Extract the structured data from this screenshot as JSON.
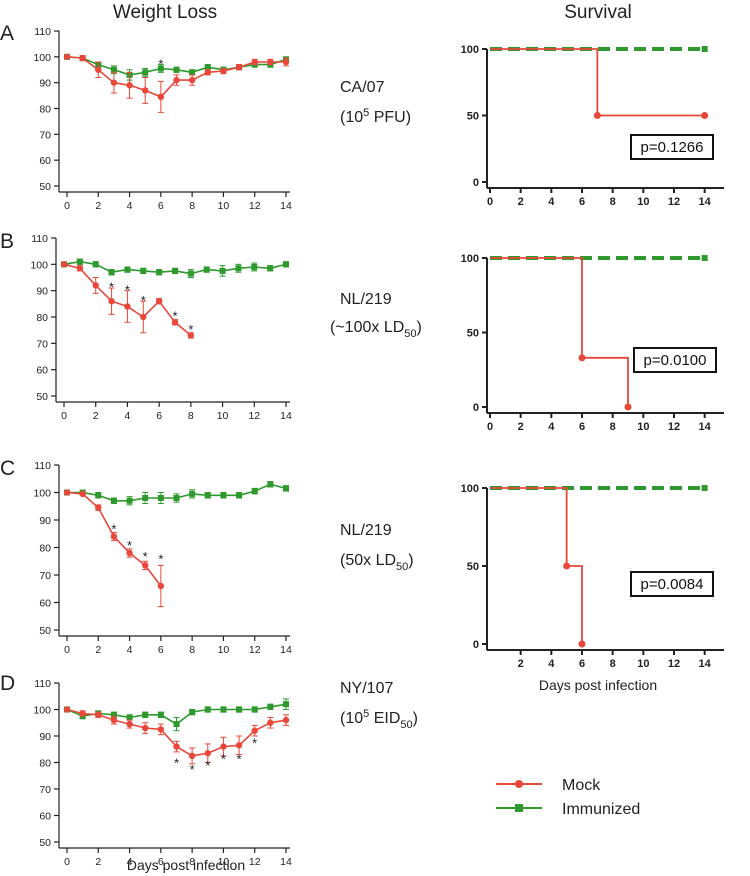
{
  "titles": {
    "left": "Weight Loss",
    "right": "Survival"
  },
  "colors": {
    "mock": "#e8473a",
    "immunized": "#2e9a2e"
  },
  "legend": {
    "mock": "Mock",
    "immunized": "Immunized"
  },
  "xlabel": "Days post infection",
  "rows": [
    {
      "panel": "A",
      "strain": "CA/07",
      "dose_prefix": "(10",
      "dose_sup": "5",
      "dose_sub": "",
      "dose_suffix": " PFU)"
    },
    {
      "panel": "B",
      "strain": "NL/219",
      "dose_prefix": "(~100x LD",
      "dose_sup": "",
      "dose_sub": "50",
      "dose_suffix": ")"
    },
    {
      "panel": "C",
      "strain": "NL/219",
      "dose_prefix": "(50x LD",
      "dose_sup": "",
      "dose_sub": "50",
      "dose_suffix": ")"
    },
    {
      "panel": "D",
      "strain": "NY/107",
      "dose_prefix": "(10",
      "dose_sup": "5",
      "dose_sub": "",
      "dose_suffix": " EID",
      "dose_suffix_sub": "50",
      "dose_end": ")"
    }
  ],
  "chart_data": [
    {
      "id": "weightA",
      "type": "line",
      "xlim": [
        0,
        14
      ],
      "ylim": [
        50,
        110
      ],
      "xticks": [
        0,
        2,
        4,
        6,
        8,
        10,
        12,
        14
      ],
      "yticks": [
        50,
        60,
        70,
        80,
        90,
        100,
        110
      ],
      "series": [
        {
          "name": "Immunized",
          "color": "#2e9a2e",
          "marker": "square",
          "x": [
            0,
            1,
            2,
            3,
            4,
            5,
            6,
            7,
            8,
            9,
            10,
            11,
            12,
            13,
            14
          ],
          "y": [
            100,
            99.5,
            97,
            95,
            93,
            94,
            95.5,
            95,
            94,
            96,
            95,
            96,
            97,
            97,
            99
          ],
          "err": [
            0.5,
            0.5,
            1,
            1.5,
            2,
            1.5,
            1.5,
            1,
            1,
            1,
            1,
            1,
            1,
            1,
            1
          ]
        },
        {
          "name": "Mock",
          "color": "#e8473a",
          "marker": "circle",
          "x": [
            0,
            1,
            2,
            3,
            4,
            5,
            6,
            7,
            8,
            9,
            10,
            11,
            12,
            13,
            14
          ],
          "y": [
            100,
            99.5,
            95,
            90,
            89,
            87,
            84.5,
            91,
            91,
            94,
            94.5,
            96,
            98,
            98,
            98
          ],
          "err": [
            0.5,
            1,
            3,
            4,
            5,
            5,
            6,
            2,
            2,
            1,
            1,
            1,
            1,
            1,
            1.5
          ]
        }
      ],
      "stars": [
        {
          "x": 6,
          "y": 97.5
        }
      ]
    },
    {
      "id": "weightB",
      "type": "line",
      "xlim": [
        0,
        14
      ],
      "ylim": [
        50,
        110
      ],
      "xticks": [
        0,
        2,
        4,
        6,
        8,
        10,
        12,
        14
      ],
      "yticks": [
        50,
        60,
        70,
        80,
        90,
        100,
        110
      ],
      "series": [
        {
          "name": "Immunized",
          "color": "#2e9a2e",
          "marker": "square",
          "x": [
            0,
            1,
            2,
            3,
            4,
            5,
            6,
            7,
            8,
            9,
            10,
            11,
            12,
            13,
            14
          ],
          "y": [
            100,
            101,
            100,
            97,
            98,
            97.5,
            97,
            97.5,
            96.5,
            98,
            97.5,
            98.5,
            99,
            98.5,
            100
          ],
          "err": [
            0.5,
            1,
            1,
            1,
            1,
            1,
            1,
            1,
            1.5,
            1,
            2,
            1.5,
            1.5,
            1,
            1
          ]
        },
        {
          "name": "Mock",
          "color": "#e8473a",
          "marker": "circle",
          "x": [
            0,
            1,
            2,
            3,
            4,
            5,
            6,
            7,
            8
          ],
          "y": [
            100,
            98.5,
            92,
            86,
            84,
            80,
            86,
            78,
            73
          ],
          "err": [
            0.5,
            1,
            3,
            5,
            6,
            6,
            1,
            1,
            1
          ]
        }
      ],
      "stars": [
        {
          "x": 3,
          "y": 91.5
        },
        {
          "x": 4,
          "y": 90.5
        },
        {
          "x": 5,
          "y": 86.5
        },
        {
          "x": 7,
          "y": 80.5
        },
        {
          "x": 8,
          "y": 75.5
        }
      ]
    },
    {
      "id": "weightC",
      "type": "line",
      "xlim": [
        0,
        14
      ],
      "ylim": [
        50,
        110
      ],
      "xticks": [
        0,
        2,
        4,
        6,
        8,
        10,
        12,
        14
      ],
      "yticks": [
        50,
        60,
        70,
        80,
        90,
        100,
        110
      ],
      "series": [
        {
          "name": "Immunized",
          "color": "#2e9a2e",
          "marker": "square",
          "x": [
            0,
            1,
            2,
            3,
            4,
            5,
            6,
            7,
            8,
            9,
            10,
            11,
            12,
            13,
            14
          ],
          "y": [
            100,
            100,
            99,
            97,
            97,
            98,
            98,
            98,
            99.5,
            99,
            99,
            99,
            100.5,
            103,
            101.5
          ],
          "err": [
            0.5,
            0.5,
            1,
            1,
            1.5,
            2,
            2,
            1.5,
            1.5,
            1,
            1,
            1,
            1,
            1,
            1
          ]
        },
        {
          "name": "Mock",
          "color": "#e8473a",
          "marker": "circle",
          "x": [
            0,
            1,
            2,
            3,
            4,
            5,
            6
          ],
          "y": [
            100,
            99.5,
            94.5,
            84,
            78,
            73.5,
            66
          ],
          "err": [
            0.5,
            0.5,
            1,
            1.5,
            1.5,
            1.5,
            7.5
          ]
        }
      ],
      "stars": [
        {
          "x": 3,
          "y": 87
        },
        {
          "x": 4,
          "y": 81
        },
        {
          "x": 5,
          "y": 77
        },
        {
          "x": 6,
          "y": 76
        }
      ]
    },
    {
      "id": "weightD",
      "type": "line",
      "xlim": [
        0,
        14
      ],
      "ylim": [
        50,
        110
      ],
      "xticks": [
        0,
        2,
        4,
        6,
        8,
        10,
        12,
        14
      ],
      "yticks": [
        50,
        60,
        70,
        80,
        90,
        100,
        110
      ],
      "series": [
        {
          "name": "Immunized",
          "color": "#2e9a2e",
          "marker": "square",
          "x": [
            0,
            1,
            2,
            3,
            4,
            5,
            6,
            7,
            8,
            9,
            10,
            11,
            12,
            13,
            14
          ],
          "y": [
            100,
            97.5,
            98.5,
            98,
            97,
            98,
            98,
            94.5,
            99,
            100,
            100,
            100,
            100,
            101,
            102
          ],
          "err": [
            0.5,
            1,
            1,
            1,
            1,
            1,
            1,
            2.5,
            1,
            1,
            1,
            1,
            1,
            1,
            2
          ]
        },
        {
          "name": "Mock",
          "color": "#e8473a",
          "marker": "circle",
          "x": [
            0,
            1,
            2,
            3,
            4,
            5,
            6,
            7,
            8,
            9,
            10,
            11,
            12,
            13,
            14
          ],
          "y": [
            100,
            98.5,
            98,
            96,
            94.5,
            93,
            92.5,
            86,
            82.5,
            83.5,
            86,
            86.5,
            92,
            95,
            96
          ],
          "err": [
            0.5,
            1,
            1,
            1.5,
            1.5,
            2,
            2,
            2,
            3,
            3.5,
            3.5,
            3.5,
            2,
            2,
            2
          ]
        }
      ],
      "stars": [
        {
          "x": 7,
          "y": 80
        },
        {
          "x": 8,
          "y": 77.5
        },
        {
          "x": 9,
          "y": 79
        },
        {
          "x": 10,
          "y": 81.5
        },
        {
          "x": 11,
          "y": 81.5
        },
        {
          "x": 12,
          "y": 87.5
        }
      ]
    },
    {
      "id": "survA",
      "type": "line",
      "step": true,
      "xlim": [
        0,
        15
      ],
      "ylim": [
        0,
        100
      ],
      "xticks": [
        0,
        2,
        4,
        6,
        8,
        10,
        12,
        14
      ],
      "yticks": [
        0,
        50,
        100
      ],
      "pvalue": "p=0.1266",
      "immunized": {
        "x": [
          0,
          14
        ],
        "y": [
          100,
          100
        ]
      },
      "mock": {
        "x": [
          0,
          7,
          14
        ],
        "y": [
          100,
          50,
          50
        ],
        "markers": [
          {
            "x": 7,
            "y": 50
          },
          {
            "x": 14,
            "y": 50
          }
        ]
      }
    },
    {
      "id": "survB",
      "type": "line",
      "step": true,
      "xlim": [
        0,
        15
      ],
      "ylim": [
        0,
        100
      ],
      "xticks": [
        0,
        2,
        4,
        6,
        8,
        10,
        12,
        14
      ],
      "yticks": [
        0,
        50,
        100
      ],
      "pvalue": "p=0.0100",
      "immunized": {
        "x": [
          0,
          14
        ],
        "y": [
          100,
          100
        ]
      },
      "mock": {
        "x": [
          0,
          6,
          9
        ],
        "y": [
          100,
          33,
          0
        ],
        "markers": [
          {
            "x": 6,
            "y": 33
          },
          {
            "x": 9,
            "y": 0
          }
        ]
      }
    },
    {
      "id": "survC",
      "type": "line",
      "step": true,
      "xlim": [
        0,
        15
      ],
      "ylim": [
        0,
        100
      ],
      "xticks": [
        2,
        4,
        6,
        8,
        10,
        12,
        14
      ],
      "yticks": [
        0,
        50,
        100
      ],
      "pvalue": "p=0.0084",
      "immunized": {
        "x": [
          0,
          14
        ],
        "y": [
          100,
          100
        ]
      },
      "mock": {
        "x": [
          0,
          5,
          6
        ],
        "y": [
          100,
          50,
          0
        ],
        "markers": [
          {
            "x": 5,
            "y": 50
          },
          {
            "x": 6,
            "y": 0
          }
        ]
      }
    }
  ]
}
